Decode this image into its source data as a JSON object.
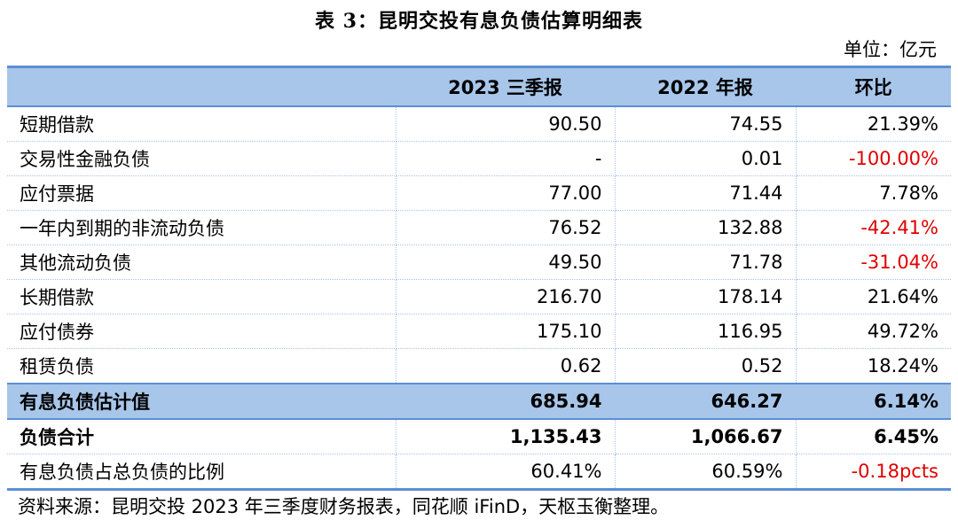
{
  "title": "表 3：昆明交投有息负债估算明细表",
  "unit": "单位：亿元",
  "columns": [
    "",
    "2023 三季报",
    "2022 年报",
    "环比"
  ],
  "rows": [
    {
      "label": "短期借款",
      "q3_2023": "90.50",
      "fy2022": "74.55",
      "qoq": "21.39%",
      "neg": false
    },
    {
      "label": "交易性金融负债",
      "q3_2023": "-",
      "fy2022": "0.01",
      "qoq": "-100.00%",
      "neg": true
    },
    {
      "label": "应付票据",
      "q3_2023": "77.00",
      "fy2022": "71.44",
      "qoq": "7.78%",
      "neg": false
    },
    {
      "label": "一年内到期的非流动负债",
      "q3_2023": "76.52",
      "fy2022": "132.88",
      "qoq": "-42.41%",
      "neg": true
    },
    {
      "label": "其他流动负债",
      "q3_2023": "49.50",
      "fy2022": "71.78",
      "qoq": "-31.04%",
      "neg": true
    },
    {
      "label": "长期借款",
      "q3_2023": "216.70",
      "fy2022": "178.14",
      "qoq": "21.64%",
      "neg": false
    },
    {
      "label": "应付债券",
      "q3_2023": "175.10",
      "fy2022": "116.95",
      "qoq": "49.72%",
      "neg": false
    },
    {
      "label": "租赁负债",
      "q3_2023": "0.62",
      "fy2022": "0.52",
      "qoq": "18.24%",
      "neg": false
    },
    {
      "label": "有息负债估计值",
      "q3_2023": "685.94",
      "fy2022": "646.27",
      "qoq": "6.14%",
      "neg": false
    },
    {
      "label": "负债合计",
      "q3_2023": "1,135.43",
      "fy2022": "1,066.67",
      "qoq": "6.45%",
      "neg": false
    },
    {
      "label": "有息负债占总负债的比例",
      "q3_2023": "60.41%",
      "fy2022": "60.59%",
      "qoq": "-0.18pcts",
      "neg": true
    }
  ],
  "source": "资料来源：昆明交投 2023 年三季度财务报表，同花顺 iFinD，天枢玉衡整理。",
  "colors": {
    "header_bg": "#a7c6ea",
    "rule": "#5b8fd6",
    "negative": "#e00000"
  }
}
